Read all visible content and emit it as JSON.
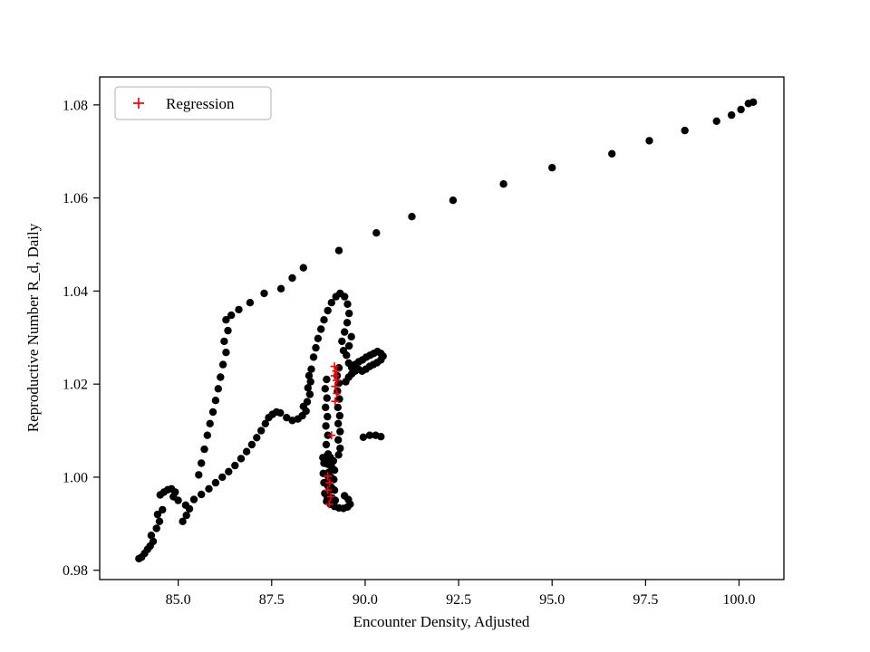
{
  "chart_data": {
    "type": "scatter",
    "title": "",
    "xlabel": "Encounter Density, Adjusted",
    "ylabel": "Reproductive Number R_d, Daily",
    "xlim": [
      82.9,
      101.2
    ],
    "ylim": [
      0.978,
      1.086
    ],
    "grid": false,
    "xticks": [
      85.0,
      87.5,
      90.0,
      92.5,
      95.0,
      97.5,
      100.0
    ],
    "xtick_labels": [
      "85.0",
      "87.5",
      "90.0",
      "92.5",
      "95.0",
      "97.5",
      "100.0"
    ],
    "yticks": [
      0.98,
      1.0,
      1.02,
      1.04,
      1.06,
      1.08
    ],
    "ytick_labels": [
      "0.98",
      "1.00",
      "1.02",
      "1.04",
      "1.06",
      "1.08"
    ],
    "legend": {
      "position": "upper left",
      "entries": [
        {
          "label": "Regression",
          "marker": "plus",
          "color": "#ff0000"
        }
      ]
    },
    "colors": {
      "scatter": "#000000",
      "regression": "#ff0000",
      "frame": "#000000",
      "legend_edge": "#b0b0b0"
    },
    "series": [
      {
        "name": "data",
        "marker": "circle",
        "color": "#000000",
        "points": [
          [
            83.95,
            0.9825
          ],
          [
            84.02,
            0.9828
          ],
          [
            84.1,
            0.9836
          ],
          [
            84.18,
            0.9845
          ],
          [
            84.25,
            0.9852
          ],
          [
            84.33,
            0.9862
          ],
          [
            84.28,
            0.9875
          ],
          [
            84.42,
            0.989
          ],
          [
            84.5,
            0.9905
          ],
          [
            84.45,
            0.992
          ],
          [
            84.58,
            0.993
          ],
          [
            84.52,
            0.9962
          ],
          [
            84.62,
            0.9968
          ],
          [
            84.72,
            0.9973
          ],
          [
            84.82,
            0.9975
          ],
          [
            84.92,
            0.9968
          ],
          [
            84.87,
            0.9958
          ],
          [
            85.0,
            0.995
          ],
          [
            85.12,
            0.9905
          ],
          [
            85.22,
            0.9918
          ],
          [
            85.3,
            0.9932
          ],
          [
            85.2,
            0.994
          ],
          [
            85.42,
            0.9952
          ],
          [
            85.62,
            0.9963
          ],
          [
            85.82,
            0.9975
          ],
          [
            86.0,
            0.9988
          ],
          [
            86.18,
            1.0
          ],
          [
            86.35,
            1.0012
          ],
          [
            86.52,
            1.0025
          ],
          [
            86.68,
            1.004
          ],
          [
            86.83,
            1.0055
          ],
          [
            86.97,
            1.007
          ],
          [
            87.1,
            1.0085
          ],
          [
            87.22,
            1.01
          ],
          [
            87.33,
            1.0115
          ],
          [
            87.42,
            1.0128
          ],
          [
            87.52,
            1.0135
          ],
          [
            87.63,
            1.014
          ],
          [
            87.73,
            1.0138
          ],
          [
            85.55,
            1.0005
          ],
          [
            85.62,
            1.003
          ],
          [
            85.7,
            1.006
          ],
          [
            85.78,
            1.009
          ],
          [
            85.85,
            1.0115
          ],
          [
            85.93,
            1.014
          ],
          [
            86.0,
            1.0165
          ],
          [
            86.07,
            1.019
          ],
          [
            86.13,
            1.0215
          ],
          [
            86.2,
            1.0242
          ],
          [
            86.28,
            1.0268
          ],
          [
            86.23,
            1.0292
          ],
          [
            86.33,
            1.0315
          ],
          [
            86.28,
            1.0338
          ],
          [
            86.42,
            1.0348
          ],
          [
            86.62,
            1.036
          ],
          [
            86.92,
            1.0375
          ],
          [
            87.3,
            1.0395
          ],
          [
            87.75,
            1.0405
          ],
          [
            88.05,
            1.0428
          ],
          [
            88.35,
            1.045
          ],
          [
            89.3,
            1.0487
          ],
          [
            90.3,
            1.0525
          ],
          [
            91.25,
            1.056
          ],
          [
            92.35,
            1.0595
          ],
          [
            93.7,
            1.063
          ],
          [
            95.0,
            1.0665
          ],
          [
            96.6,
            1.0695
          ],
          [
            97.6,
            1.0723
          ],
          [
            98.55,
            1.0745
          ],
          [
            99.4,
            1.0765
          ],
          [
            99.8,
            1.0778
          ],
          [
            100.05,
            1.079
          ],
          [
            100.25,
            1.0803
          ],
          [
            100.38,
            1.0806
          ],
          [
            87.9,
            1.0128
          ],
          [
            88.05,
            1.0122
          ],
          [
            88.2,
            1.0125
          ],
          [
            88.32,
            1.0132
          ],
          [
            88.42,
            1.0142
          ],
          [
            88.35,
            1.0152
          ],
          [
            88.45,
            1.0162
          ],
          [
            88.52,
            1.0178
          ],
          [
            88.47,
            1.0192
          ],
          [
            88.54,
            1.0205
          ],
          [
            88.5,
            1.0218
          ],
          [
            88.56,
            1.0232
          ],
          [
            88.62,
            1.0258
          ],
          [
            88.68,
            1.0278
          ],
          [
            88.74,
            1.0298
          ],
          [
            88.82,
            1.0318
          ],
          [
            88.9,
            1.0338
          ],
          [
            89.0,
            1.0358
          ],
          [
            89.1,
            1.0375
          ],
          [
            89.22,
            1.0388
          ],
          [
            89.33,
            1.0395
          ],
          [
            89.45,
            1.0388
          ],
          [
            89.53,
            1.0372
          ],
          [
            89.57,
            1.0352
          ],
          [
            89.52,
            1.0332
          ],
          [
            89.45,
            1.0312
          ],
          [
            89.38,
            1.0292
          ],
          [
            89.42,
            1.0272
          ],
          [
            89.5,
            1.0262
          ],
          [
            89.57,
            1.0282
          ],
          [
            89.63,
            1.0302
          ],
          [
            89.3,
            1.0235
          ],
          [
            89.25,
            1.0218
          ],
          [
            89.3,
            1.0202
          ],
          [
            89.26,
            1.0185
          ],
          [
            89.31,
            1.0168
          ],
          [
            89.27,
            1.015
          ],
          [
            89.32,
            1.0132
          ],
          [
            89.28,
            1.0115
          ],
          [
            89.33,
            1.0098
          ],
          [
            89.28,
            1.008
          ],
          [
            89.33,
            1.0062
          ],
          [
            89.29,
            1.0048
          ],
          [
            88.97,
            1.021
          ],
          [
            88.93,
            1.019
          ],
          [
            88.98,
            1.017
          ],
          [
            88.94,
            1.015
          ],
          [
            88.99,
            1.013
          ],
          [
            88.95,
            1.011
          ],
          [
            89.0,
            1.009
          ],
          [
            88.96,
            1.007
          ],
          [
            89.01,
            1.005
          ],
          [
            88.97,
            1.003
          ],
          [
            89.02,
            1.001
          ],
          [
            88.98,
            0.999
          ],
          [
            89.03,
            0.997
          ],
          [
            88.99,
            0.9955
          ],
          [
            88.87,
            1.0042
          ],
          [
            88.97,
            1.0045
          ],
          [
            89.07,
            1.0042
          ],
          [
            89.15,
            1.0035
          ],
          [
            88.9,
            1.003
          ],
          [
            89.0,
            1.0028
          ],
          [
            89.1,
            1.0022
          ],
          [
            89.18,
            1.0015
          ],
          [
            88.88,
            1.0008
          ],
          [
            88.98,
            1.0005
          ],
          [
            89.08,
            1.0
          ],
          [
            89.16,
            0.9995
          ],
          [
            88.9,
            0.9988
          ],
          [
            89.0,
            0.9982
          ],
          [
            89.1,
            0.9978
          ],
          [
            89.18,
            0.9972
          ],
          [
            88.92,
            0.9965
          ],
          [
            89.02,
            0.996
          ],
          [
            89.12,
            0.9955
          ],
          [
            89.2,
            0.995
          ],
          [
            88.97,
            0.9948
          ],
          [
            89.07,
            0.9942
          ],
          [
            89.18,
            0.9937
          ],
          [
            89.3,
            0.9934
          ],
          [
            89.42,
            0.9933
          ],
          [
            89.53,
            0.9936
          ],
          [
            89.6,
            0.9942
          ],
          [
            89.55,
            0.9952
          ],
          [
            89.45,
            0.996
          ],
          [
            89.95,
            1.0086
          ],
          [
            90.12,
            1.009
          ],
          [
            90.28,
            1.009
          ],
          [
            90.42,
            1.0087
          ],
          [
            89.48,
            1.0205
          ],
          [
            89.56,
            1.0215
          ],
          [
            89.64,
            1.0222
          ],
          [
            89.73,
            1.0228
          ],
          [
            89.82,
            1.0232
          ],
          [
            89.92,
            1.0228
          ],
          [
            90.02,
            1.0232
          ],
          [
            90.12,
            1.0238
          ],
          [
            90.22,
            1.0242
          ],
          [
            90.32,
            1.0246
          ],
          [
            90.42,
            1.0252
          ],
          [
            90.48,
            1.026
          ],
          [
            90.42,
            1.0266
          ],
          [
            90.33,
            1.027
          ],
          [
            90.23,
            1.0266
          ],
          [
            90.13,
            1.0262
          ],
          [
            90.03,
            1.0258
          ],
          [
            89.93,
            1.0252
          ],
          [
            89.83,
            1.0248
          ],
          [
            89.73,
            1.0242
          ],
          [
            89.64,
            1.0236
          ],
          [
            89.56,
            1.0245
          ]
        ]
      },
      {
        "name": "Regression",
        "marker": "plus",
        "color": "#ff0000",
        "points": [
          [
            89.18,
            1.0238
          ],
          [
            89.23,
            1.0228
          ],
          [
            89.19,
            1.0218
          ],
          [
            89.24,
            1.0208
          ],
          [
            89.2,
            1.0195
          ],
          [
            89.24,
            1.018
          ],
          [
            89.2,
            1.0163
          ],
          [
            89.1,
            1.009
          ],
          [
            89.0,
            1.0002
          ],
          [
            89.05,
            0.9988
          ],
          [
            89.0,
            0.9972
          ],
          [
            89.08,
            0.9958
          ],
          [
            89.04,
            0.9942
          ]
        ]
      }
    ]
  }
}
